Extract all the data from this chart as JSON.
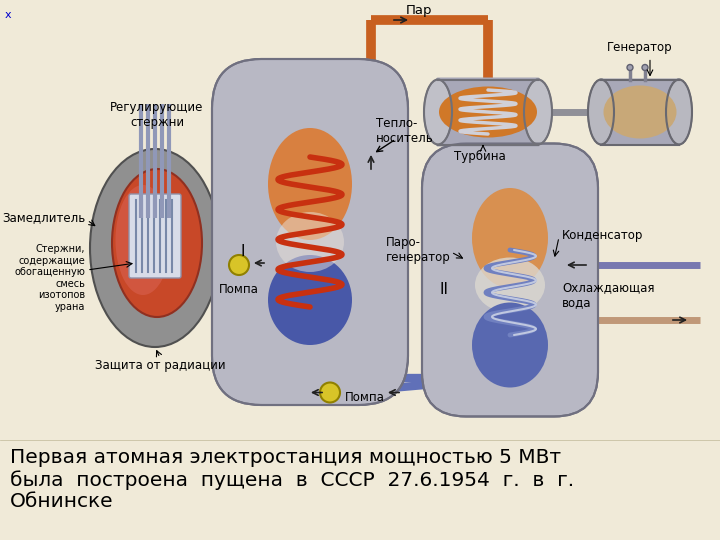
{
  "bg_color": "#f0ead8",
  "caption_line1": "Первая атомная электростанция мощностью 5 МВт",
  "caption_line2": "была  построена  пущена  в  СССР  27.6.1954  г.  в  г.",
  "caption_line3": "Обнинске",
  "caption_fontsize": 14.5,
  "caption_color": "#000000",
  "pipe_orange": "#c86020",
  "pipe_blue": "#6070b8",
  "pipe_tan": "#c8a070",
  "vessel_gray": "#b8b8c4",
  "vessel_edge": "#707080",
  "reactor_gray": "#909090",
  "reactor_edge": "#505050",
  "core_red": "#c84828",
  "core_edge": "#903020",
  "fuel_fill": "#d8dce8",
  "rod_color": "#9098b8",
  "turbine_gray": "#a8a8b8",
  "turb_orange": "#d07828",
  "turb_blade": "#d8d8e0",
  "gen_gray": "#a8a8b8",
  "gen_tan": "#c8a878",
  "pump_yellow": "#d8c428",
  "orange_fill": "#d88040",
  "blue_fill": "#4858a8",
  "blue_fill2": "#5868b0",
  "coil_red": "#c83010",
  "coil_blue": "#8898b8",
  "coil_silver": "#b8c0cc"
}
